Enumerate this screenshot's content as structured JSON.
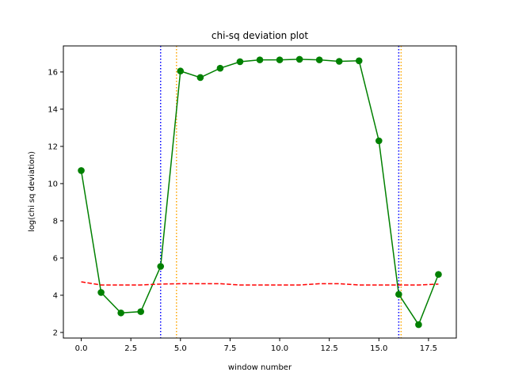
{
  "chart_data": {
    "type": "line",
    "title": "chi-sq deviation plot",
    "xlabel": "window number",
    "ylabel": "log(chi sq deviation)",
    "xlim": [
      -0.9,
      18.9
    ],
    "ylim": [
      1.7,
      17.4
    ],
    "xticks": [
      0.0,
      2.5,
      5.0,
      7.5,
      10.0,
      12.5,
      15.0,
      17.5
    ],
    "xtick_labels": [
      "0.0",
      "2.5",
      "5.0",
      "7.5",
      "10.0",
      "12.5",
      "15.0",
      "17.5"
    ],
    "yticks": [
      2,
      4,
      6,
      8,
      10,
      12,
      14,
      16
    ],
    "ytick_labels": [
      "2",
      "4",
      "6",
      "8",
      "10",
      "12",
      "14",
      "16"
    ],
    "grid": false,
    "series": [
      {
        "style": "solid-with-markers",
        "color": "#008000",
        "x": [
          0,
          1,
          2,
          3,
          4,
          5,
          6,
          7,
          8,
          9,
          10,
          11,
          12,
          13,
          14,
          15,
          16,
          17,
          18
        ],
        "y": [
          10.7,
          4.15,
          3.05,
          3.12,
          5.55,
          16.05,
          15.7,
          16.2,
          16.55,
          16.65,
          16.65,
          16.68,
          16.65,
          16.57,
          16.6,
          12.3,
          4.05,
          2.42,
          5.12
        ]
      },
      {
        "style": "dashed",
        "color": "#ff0000",
        "x": [
          0,
          1,
          2,
          3,
          4,
          5,
          6,
          7,
          8,
          9,
          10,
          11,
          12,
          13,
          14,
          15,
          16,
          17,
          18
        ],
        "y": [
          4.72,
          4.55,
          4.55,
          4.55,
          4.6,
          4.62,
          4.62,
          4.62,
          4.55,
          4.55,
          4.55,
          4.55,
          4.62,
          4.62,
          4.55,
          4.55,
          4.55,
          4.55,
          4.6
        ]
      }
    ],
    "vlines": [
      {
        "x": 4.0,
        "color": "#0000ff",
        "style": "dotted"
      },
      {
        "x": 4.8,
        "color": "#ffa500",
        "style": "dotted"
      },
      {
        "x": 16.0,
        "color": "#0000ff",
        "style": "dotted"
      },
      {
        "x": 16.12,
        "color": "#ffa500",
        "style": "dotted"
      }
    ]
  }
}
